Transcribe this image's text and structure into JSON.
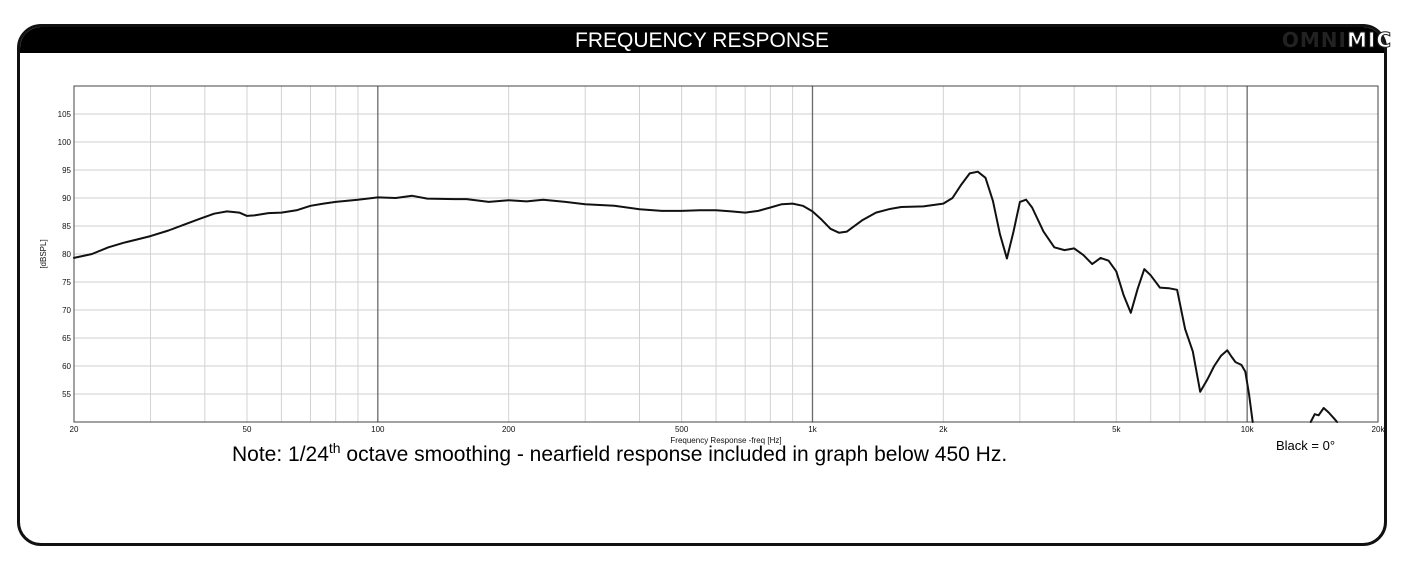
{
  "header": {
    "title": "FREQUENCY RESPONSE"
  },
  "brand": {
    "bold_part": "OMNI",
    "outline_part": "MIC"
  },
  "note": {
    "prefix": "Note: 1/24",
    "superscript": "th",
    "suffix": " octave smoothing - nearfield response included in graph below 450 Hz."
  },
  "legend_note": "Black = 0°",
  "chart_data": {
    "type": "line",
    "title": "",
    "xlabel": "Frequency Response -freq [Hz]",
    "ylabel": "[dBSPL]",
    "x_scale": "log",
    "xlim": [
      20,
      20000
    ],
    "ylim": [
      50,
      110
    ],
    "x_tick_labels": [
      {
        "value": 20,
        "label": "20"
      },
      {
        "value": 50,
        "label": "50"
      },
      {
        "value": 100,
        "label": "100"
      },
      {
        "value": 200,
        "label": "200"
      },
      {
        "value": 500,
        "label": "500"
      },
      {
        "value": 1000,
        "label": "1k"
      },
      {
        "value": 2000,
        "label": "2k"
      },
      {
        "value": 5000,
        "label": "5k"
      },
      {
        "value": 10000,
        "label": "10k"
      },
      {
        "value": 20000,
        "label": "20k"
      }
    ],
    "y_tick_labels": [
      "55",
      "60",
      "65",
      "70",
      "75",
      "80",
      "85",
      "90",
      "95",
      "100",
      "105"
    ],
    "grid": true,
    "line_color": "#111111",
    "series": [
      {
        "points": [
          [
            20,
            79.3
          ],
          [
            22,
            80
          ],
          [
            24,
            81.2
          ],
          [
            26,
            82
          ],
          [
            28,
            82.6
          ],
          [
            30,
            83.2
          ],
          [
            33,
            84.2
          ],
          [
            36,
            85.3
          ],
          [
            39,
            86.3
          ],
          [
            42,
            87.2
          ],
          [
            45,
            87.6
          ],
          [
            48,
            87.4
          ],
          [
            50,
            86.8
          ],
          [
            52,
            86.9
          ],
          [
            56,
            87.3
          ],
          [
            60,
            87.4
          ],
          [
            65,
            87.8
          ],
          [
            70,
            88.6
          ],
          [
            75,
            89
          ],
          [
            80,
            89.3
          ],
          [
            90,
            89.7
          ],
          [
            100,
            90.1
          ],
          [
            110,
            90
          ],
          [
            120,
            90.4
          ],
          [
            130,
            89.9
          ],
          [
            150,
            89.8
          ],
          [
            160,
            89.8
          ],
          [
            180,
            89.3
          ],
          [
            200,
            89.6
          ],
          [
            220,
            89.4
          ],
          [
            240,
            89.7
          ],
          [
            270,
            89.3
          ],
          [
            300,
            88.9
          ],
          [
            350,
            88.6
          ],
          [
            400,
            88
          ],
          [
            450,
            87.7
          ],
          [
            500,
            87.7
          ],
          [
            550,
            87.8
          ],
          [
            600,
            87.8
          ],
          [
            650,
            87.6
          ],
          [
            700,
            87.4
          ],
          [
            750,
            87.7
          ],
          [
            800,
            88.3
          ],
          [
            850,
            88.9
          ],
          [
            900,
            89
          ],
          [
            950,
            88.6
          ],
          [
            1000,
            87.6
          ],
          [
            1050,
            86.1
          ],
          [
            1100,
            84.5
          ],
          [
            1150,
            83.8
          ],
          [
            1200,
            84
          ],
          [
            1300,
            86
          ],
          [
            1400,
            87.4
          ],
          [
            1500,
            88
          ],
          [
            1600,
            88.4
          ],
          [
            1800,
            88.5
          ],
          [
            2000,
            89
          ],
          [
            2100,
            90
          ],
          [
            2200,
            92.4
          ],
          [
            2300,
            94.4
          ],
          [
            2400,
            94.7
          ],
          [
            2500,
            93.6
          ],
          [
            2600,
            89.5
          ],
          [
            2700,
            83.5
          ],
          [
            2800,
            79.2
          ],
          [
            2900,
            84
          ],
          [
            3000,
            89.3
          ],
          [
            3100,
            89.7
          ],
          [
            3200,
            88.3
          ],
          [
            3400,
            84
          ],
          [
            3600,
            81.2
          ],
          [
            3800,
            80.7
          ],
          [
            4000,
            81
          ],
          [
            4200,
            79.8
          ],
          [
            4400,
            78.2
          ],
          [
            4600,
            79.3
          ],
          [
            4800,
            78.8
          ],
          [
            5000,
            76.9
          ],
          [
            5200,
            72.6
          ],
          [
            5400,
            69.5
          ],
          [
            5600,
            73.8
          ],
          [
            5800,
            77.3
          ],
          [
            6000,
            76.2
          ],
          [
            6300,
            74
          ],
          [
            6600,
            73.9
          ],
          [
            6900,
            73.6
          ],
          [
            7200,
            66.6
          ],
          [
            7500,
            62.6
          ],
          [
            7800,
            55.4
          ],
          [
            8100,
            57.6
          ],
          [
            8400,
            60
          ],
          [
            8700,
            61.8
          ],
          [
            9000,
            62.8
          ],
          [
            9200,
            61.7
          ],
          [
            9400,
            60.7
          ],
          [
            9700,
            60.2
          ],
          [
            9900,
            59
          ],
          [
            10100,
            55
          ],
          [
            10300,
            50
          ]
        ]
      },
      {
        "points": [
          [
            14000,
            50
          ],
          [
            14300,
            51.4
          ],
          [
            14600,
            51.2
          ],
          [
            15000,
            52.5
          ],
          [
            15400,
            51.7
          ],
          [
            15900,
            50.5
          ],
          [
            16100,
            50
          ]
        ]
      }
    ]
  }
}
